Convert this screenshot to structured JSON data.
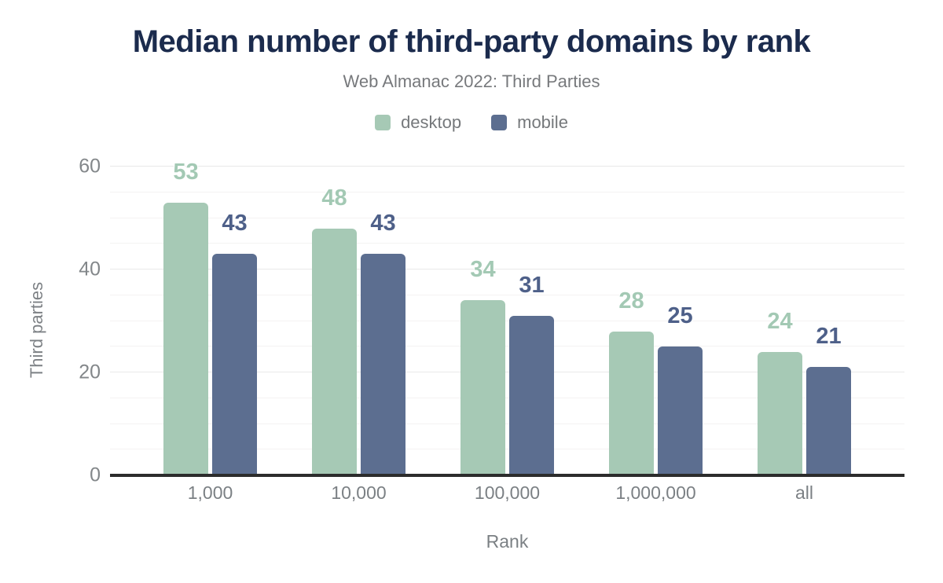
{
  "chart_data": {
    "type": "bar",
    "title": "Median number of third-party domains by rank",
    "subtitle": "Web Almanac 2022: Third Parties",
    "xlabel": "Rank",
    "ylabel": "Third parties",
    "categories": [
      "1,000",
      "10,000",
      "100,000",
      "1,000,000",
      "all"
    ],
    "series": [
      {
        "name": "desktop",
        "color": "#a6c9b5",
        "label_color": "#a3c9b4",
        "values": [
          53,
          48,
          34,
          28,
          24
        ]
      },
      {
        "name": "mobile",
        "color": "#5c6e90",
        "label_color": "#4e6089",
        "values": [
          43,
          43,
          31,
          25,
          21
        ]
      }
    ],
    "ylim": [
      0,
      60
    ],
    "yticks": [
      0,
      20,
      40,
      60
    ],
    "minor_grid_step": 5,
    "grid": "on",
    "legend_position": "top",
    "colors": {
      "title": "#1b2b4d",
      "muted_text": "#77797c",
      "axis_line": "#2c2c2c"
    }
  }
}
